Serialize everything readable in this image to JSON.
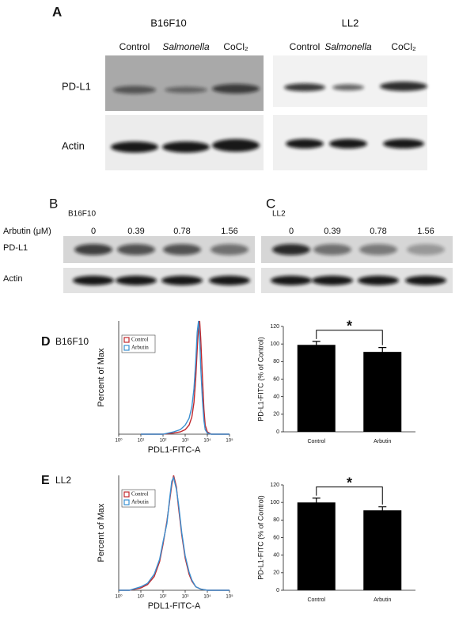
{
  "panels": {
    "A": {
      "label": "A",
      "groups": [
        {
          "name": "B16F10",
          "lanes": [
            "Control",
            "Salmonella",
            "CoCl₂"
          ]
        },
        {
          "name": "LL2",
          "lanes": [
            "Control",
            "Salmonella",
            "CoCl₂"
          ]
        }
      ],
      "rows": [
        "PD-L1",
        "Actin"
      ]
    },
    "B": {
      "label": "B",
      "title": "B16F10",
      "dose_label": "Arbutin (μM)",
      "doses": [
        0,
        0.39,
        0.78,
        1.56
      ],
      "rows": [
        "PD-L1",
        "Actin"
      ]
    },
    "C": {
      "label": "C",
      "title": "LL2",
      "doses": [
        0,
        0.39,
        0.78,
        1.56
      ]
    }
  },
  "chart_data": [
    {
      "type": "line",
      "panel": "D",
      "title": "B16F10",
      "x_label": "PDL1-FITC-A",
      "y_label": "Percent of Max",
      "log_x": true,
      "x": [
        10,
        100,
        300,
        600,
        1000,
        1500,
        2000,
        2500,
        3000,
        3500,
        4000,
        4500,
        5000,
        6000,
        7000,
        8000,
        10000,
        15000,
        30000,
        100000
      ],
      "series": [
        {
          "name": "Control",
          "color": "#c0282d",
          "values": [
            0,
            0,
            1,
            2,
            4,
            8,
            15,
            28,
            50,
            75,
            95,
            100,
            85,
            50,
            22,
            8,
            2,
            0,
            0,
            0
          ]
        },
        {
          "name": "Arbutin",
          "color": "#3a8fd0",
          "values": [
            0,
            0,
            2,
            4,
            8,
            14,
            24,
            40,
            65,
            90,
            100,
            85,
            60,
            30,
            12,
            4,
            1,
            0,
            0,
            0
          ]
        }
      ],
      "xlim": [
        1,
        100000
      ],
      "ylim": [
        0,
        100
      ],
      "xticks": [
        {
          "value": 1,
          "label": "10⁰"
        },
        {
          "value": 10,
          "label": "10¹"
        },
        {
          "value": 100,
          "label": "10²"
        },
        {
          "value": 1000,
          "label": "10³"
        },
        {
          "value": 10000,
          "label": "10⁴"
        },
        {
          "value": 100000,
          "label": "10⁵"
        }
      ]
    },
    {
      "type": "bar",
      "y_label": "PD-L1-FITC (% of Control)",
      "categories": [
        "Control",
        "Arbutin"
      ],
      "values": [
        99,
        91
      ],
      "errors": [
        4,
        5
      ],
      "color": "#000000",
      "annotation": "*",
      "ylim": [
        0,
        120
      ],
      "yticks": [
        0,
        20,
        40,
        60,
        80,
        100,
        120
      ]
    },
    {
      "type": "line",
      "panel": "E",
      "title": "LL2",
      "x_label": "PDL1-FITC-A",
      "y_label": "Percent of Max",
      "log_x": true,
      "x": [
        1,
        3,
        10,
        20,
        40,
        70,
        100,
        150,
        200,
        250,
        300,
        400,
        500,
        700,
        1000,
        1500,
        2000,
        3000,
        5000,
        10000,
        100000
      ],
      "series": [
        {
          "name": "Control",
          "color": "#c0282d",
          "values": [
            0,
            0,
            2,
            5,
            12,
            25,
            40,
            60,
            78,
            92,
            100,
            90,
            72,
            48,
            28,
            14,
            8,
            3,
            1,
            0,
            0
          ]
        },
        {
          "name": "Arbutin",
          "color": "#3a8fd0",
          "values": [
            0,
            0,
            3,
            6,
            14,
            27,
            42,
            58,
            80,
            95,
            98,
            88,
            75,
            50,
            30,
            16,
            9,
            3,
            1,
            0,
            0
          ]
        }
      ],
      "xlim": [
        1,
        100000
      ],
      "ylim": [
        0,
        100
      ],
      "xticks": [
        {
          "value": 1,
          "label": "10⁰"
        },
        {
          "value": 10,
          "label": "10¹"
        },
        {
          "value": 100,
          "label": "10²"
        },
        {
          "value": 1000,
          "label": "10³"
        },
        {
          "value": 10000,
          "label": "10⁴"
        },
        {
          "value": 100000,
          "label": "10⁵"
        }
      ]
    },
    {
      "type": "bar",
      "y_label": "PD-L1-FITC (% of Control)",
      "categories": [
        "Control",
        "Arbutin"
      ],
      "values": [
        100,
        91
      ],
      "errors": [
        5,
        4
      ],
      "color": "#000000",
      "annotation": "*",
      "ylim": [
        0,
        120
      ],
      "yticks": [
        0,
        20,
        40,
        60,
        80,
        100,
        120
      ]
    }
  ]
}
